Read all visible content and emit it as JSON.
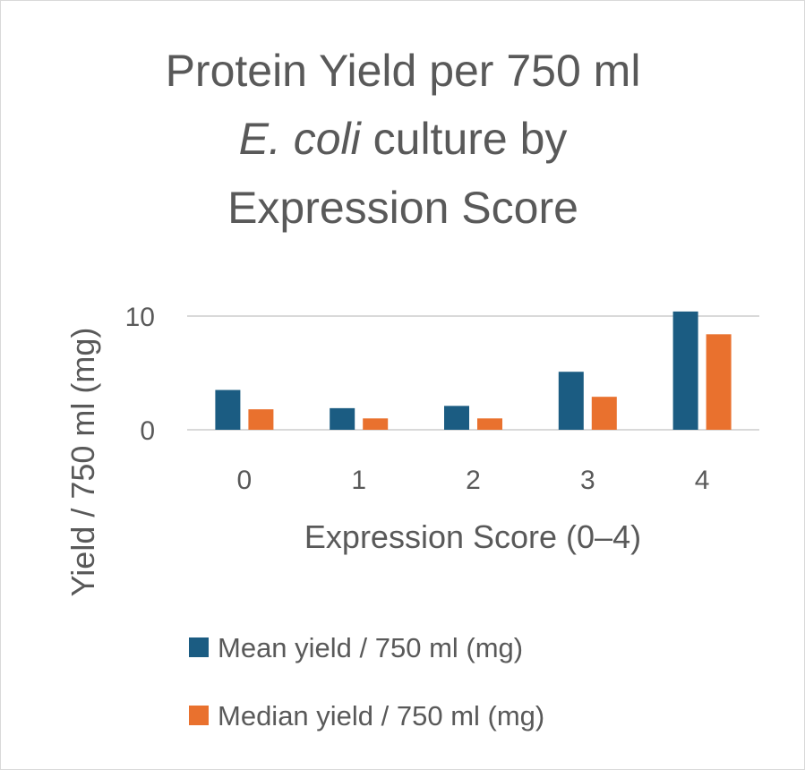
{
  "chart_data": {
    "type": "bar",
    "title_lines": [
      [
        {
          "text": "Protein Yield per 750 ml",
          "italic": false
        }
      ],
      [
        {
          "text": "E. coli",
          "italic": true
        },
        {
          "text": " culture by",
          "italic": false
        }
      ],
      [
        {
          "text": "Expression Score",
          "italic": false
        }
      ]
    ],
    "xlabel": "Expression Score (0–4)",
    "ylabel": "Yield / 750 ml (mg)",
    "categories": [
      "0",
      "1",
      "2",
      "3",
      "4"
    ],
    "yticks": [
      0,
      10
    ],
    "ylim": [
      0,
      10
    ],
    "grid": true,
    "legend_position": "bottom",
    "series": [
      {
        "name": "Mean yield / 750 ml (mg)",
        "color": "#1b5c82",
        "values": [
          3.5,
          1.9,
          2.1,
          5.1,
          10.4
        ]
      },
      {
        "name": "Median yield / 750 ml (mg)",
        "color": "#e9712e",
        "values": [
          1.8,
          1.0,
          1.0,
          2.9,
          8.4
        ]
      }
    ]
  }
}
